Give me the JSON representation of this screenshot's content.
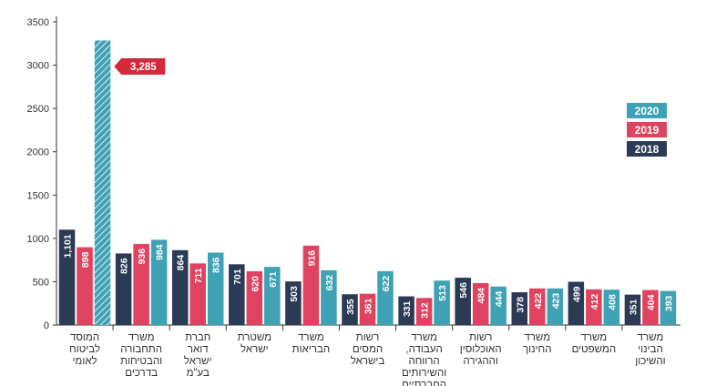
{
  "chart_data": {
    "type": "bar",
    "y_ticks": [
      0,
      500,
      1000,
      1500,
      2000,
      2500,
      3000,
      3500
    ],
    "ylim": [
      0,
      3500
    ],
    "grid": false,
    "legend_position": "right",
    "categories": [
      [
        "המוסד",
        "לביטוח",
        "לאומי"
      ],
      [
        "משרד",
        "התחבורה",
        "והבטיחות",
        "בדרכים"
      ],
      [
        "חברת",
        "דואר",
        "ישראל",
        "בע\"מ"
      ],
      [
        "משטרת",
        "ישראל"
      ],
      [
        "משרד",
        "הבריאות"
      ],
      [
        "רשות",
        "המסים",
        "בישראל"
      ],
      [
        "משרד",
        "העבודה,",
        "הרווחה",
        "והשירותים",
        "החברתיים"
      ],
      [
        "רשות",
        "האוכלוסין",
        "וההגירה"
      ],
      [
        "משרד",
        "החינוך"
      ],
      [
        "משרד",
        "המשפטים"
      ],
      [
        "משרד",
        "הבינוי",
        "והשיכון"
      ]
    ],
    "series": [
      {
        "name": "2018",
        "color": "#2b3a55",
        "values": [
          1101,
          826,
          864,
          701,
          503,
          355,
          331,
          546,
          378,
          499,
          351
        ]
      },
      {
        "name": "2019",
        "color": "#e0435f",
        "values": [
          898,
          936,
          711,
          620,
          916,
          361,
          312,
          484,
          422,
          412,
          404
        ]
      },
      {
        "name": "2020",
        "color": "#3ea2b4",
        "values": [
          3285,
          984,
          836,
          671,
          632,
          622,
          513,
          444,
          423,
          408,
          393
        ]
      }
    ],
    "value_labels": [
      [
        "1,101",
        "826",
        "864",
        "701",
        "503",
        "355",
        "331",
        "546",
        "378",
        "499",
        "351"
      ],
      [
        "898",
        "936",
        "711",
        "620",
        "916",
        "361",
        "312",
        "484",
        "422",
        "412",
        "404"
      ],
      [
        "",
        "984",
        "836",
        "671",
        "632",
        "622",
        "513",
        "444",
        "423",
        "408",
        "393"
      ]
    ],
    "legend_order": [
      "2020",
      "2019",
      "2018"
    ],
    "annotation": {
      "text": "3,285",
      "color": "#d22a3a",
      "series": "2020",
      "category_index": 0,
      "pattern": "hatched"
    }
  }
}
